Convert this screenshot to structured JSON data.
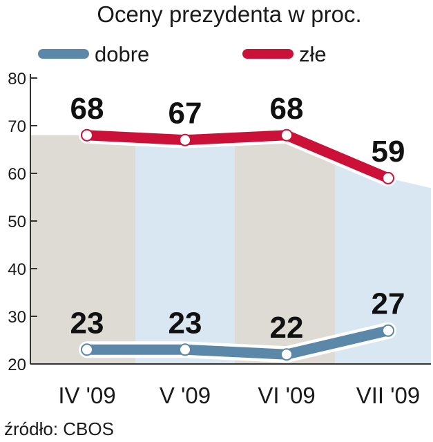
{
  "colors": {
    "dobre": "#5b87a8",
    "zle": "#cc1138",
    "band_gray": "#dddbd3",
    "band_blue": "#d8e7f1",
    "axis": "#333333"
  },
  "chart_data": {
    "type": "line",
    "title": "Oceny prezydenta w proc.",
    "categories": [
      "IV '09",
      "V '09",
      "VI '09",
      "VII '09"
    ],
    "series": [
      {
        "name": "dobre",
        "values": [
          23,
          23,
          22,
          27
        ]
      },
      {
        "name": "złe",
        "values": [
          68,
          67,
          68,
          59
        ]
      }
    ],
    "ylim": [
      20,
      80
    ],
    "yticks": [
      "80",
      "70",
      "60",
      "50",
      "40",
      "30",
      "20"
    ],
    "legend": "top",
    "grid": false
  },
  "source": "źródło: CBOS"
}
